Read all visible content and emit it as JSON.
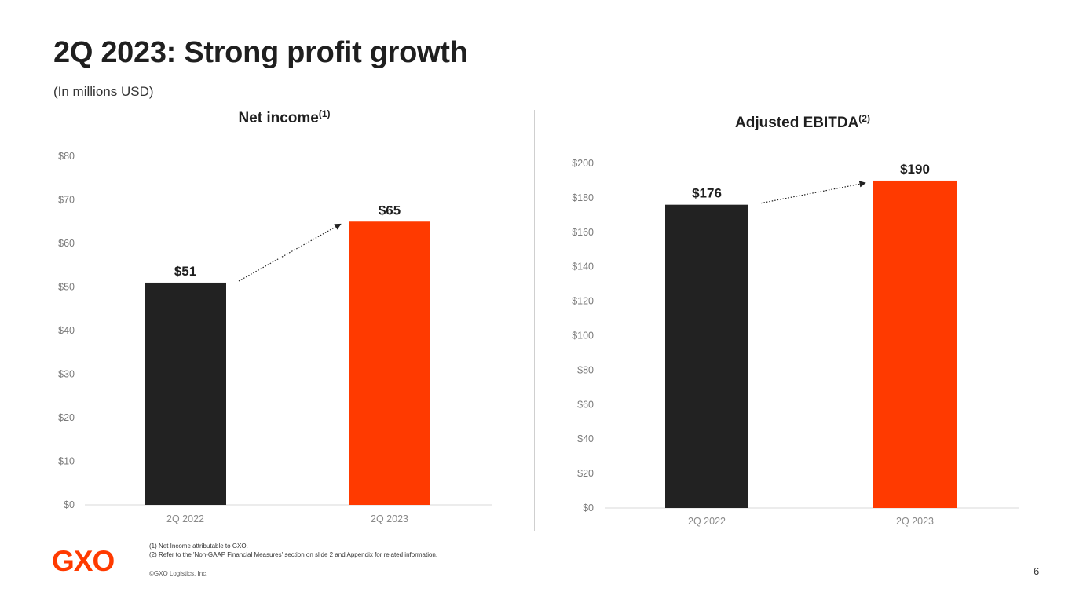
{
  "slide": {
    "title": "2Q 2023: Strong profit growth",
    "subtitle": "(In millions USD)",
    "page_number": "6",
    "logo_text": "GXO",
    "footnotes": [
      "(1) Net Income attributable to GXO.",
      "(2) Refer to the 'Non-GAAP Financial Measures' section on slide 2 and Appendix for related information."
    ],
    "copyright": "©GXO Logistics, Inc."
  },
  "colors": {
    "bar_prior": "#222222",
    "bar_current": "#ff3a00",
    "gridline": "#d9d9d9",
    "arrow": "#222222"
  },
  "chart_data": [
    {
      "type": "bar",
      "title": "Net income",
      "title_superscript": "(1)",
      "categories": [
        "2Q 2022",
        "2Q 2023"
      ],
      "values": [
        51,
        65
      ],
      "data_labels": [
        "$51",
        "$65"
      ],
      "ylim": [
        0,
        80
      ],
      "yticks": [
        0,
        10,
        20,
        30,
        40,
        50,
        60,
        70,
        80
      ],
      "ytick_labels": [
        "$0",
        "$10",
        "$20",
        "$30",
        "$40",
        "$50",
        "$60",
        "$70",
        "$80"
      ],
      "xlabel": "",
      "ylabel": "",
      "annotation": "dotted arrow from 2Q 2022 bar to 2Q 2023 bar"
    },
    {
      "type": "bar",
      "title": "Adjusted EBITDA",
      "title_superscript": "(2)",
      "categories": [
        "2Q 2022",
        "2Q 2023"
      ],
      "values": [
        176,
        190
      ],
      "data_labels": [
        "$176",
        "$190"
      ],
      "ylim": [
        0,
        200
      ],
      "yticks": [
        0,
        20,
        40,
        60,
        80,
        100,
        120,
        140,
        160,
        180,
        200
      ],
      "ytick_labels": [
        "$0",
        "$20",
        "$40",
        "$60",
        "$80",
        "$100",
        "$120",
        "$140",
        "$160",
        "$180",
        "$200"
      ],
      "xlabel": "",
      "ylabel": "",
      "annotation": "dotted arrow from 2Q 2022 bar to 2Q 2023 bar"
    }
  ]
}
